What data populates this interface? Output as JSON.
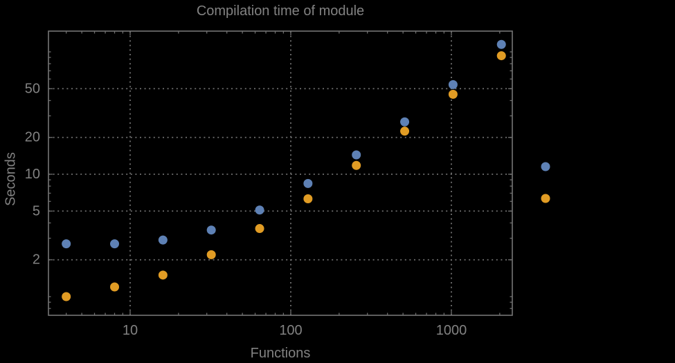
{
  "colors": {
    "background": "#000000",
    "frame": "#757575",
    "gridline": "#707070",
    "text": "#828282",
    "series_blue": "#5e81b5",
    "series_orange": "#e19c24"
  },
  "chart_data": {
    "type": "scatter",
    "title": "Compilation time of module",
    "xlabel": "Functions",
    "ylabel": "Seconds",
    "x_axis": {
      "label": "Functions",
      "scale": "log",
      "xlim": [
        3.1,
        2400
      ],
      "major_ticks": [
        10,
        100,
        1000
      ],
      "major_tick_labels": [
        "10",
        "100",
        "1000"
      ],
      "minor_ticks": [
        4,
        5,
        6,
        7,
        8,
        9,
        20,
        30,
        40,
        50,
        60,
        70,
        80,
        90,
        200,
        300,
        400,
        500,
        600,
        700,
        800,
        900,
        2000
      ],
      "grid": "dotted"
    },
    "y_axis": {
      "label": "Seconds",
      "scale": "log",
      "ylim": [
        0.7,
        147
      ],
      "major_ticks": [
        2,
        5,
        10,
        20,
        50
      ],
      "major_tick_labels": [
        "2",
        "5",
        "10",
        "20",
        "50"
      ],
      "minor_ticks": [
        0.8,
        0.9,
        1,
        3,
        4,
        6,
        7,
        8,
        9,
        30,
        40,
        60,
        70,
        80,
        90,
        100
      ],
      "grid": "dotted"
    },
    "x": [
      4,
      8,
      16,
      32,
      64,
      128,
      256,
      512,
      1024,
      2048
    ],
    "series": [
      {
        "name": "blue",
        "color": "#5e81b5",
        "values": [
          2.7,
          2.7,
          2.9,
          3.5,
          5.1,
          8.4,
          14.4,
          26.8,
          54,
          115
        ]
      },
      {
        "name": "orange",
        "color": "#e19c24",
        "values": [
          1.0,
          1.2,
          1.5,
          2.2,
          3.6,
          6.3,
          11.8,
          22.5,
          45,
          93
        ]
      }
    ],
    "legend": {
      "position": "right-of-plot",
      "labels_visible": false,
      "items": [
        {
          "series": "blue",
          "color": "#5e81b5",
          "label": ""
        },
        {
          "series": "orange",
          "color": "#e19c24",
          "label": ""
        }
      ]
    }
  }
}
